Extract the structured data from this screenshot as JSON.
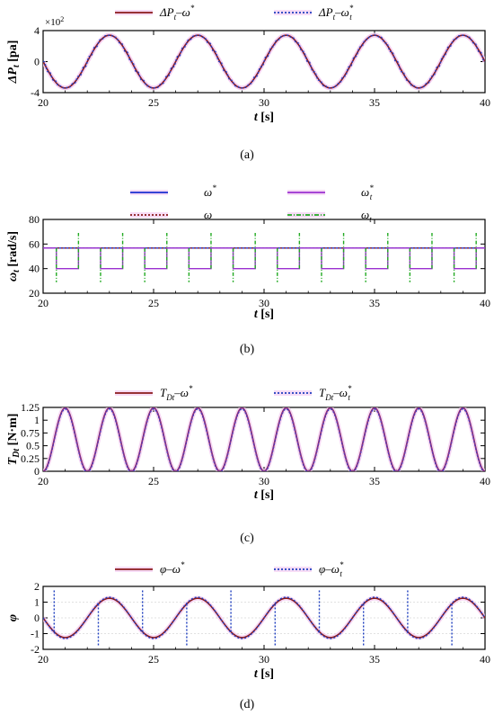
{
  "chart_data": [
    {
      "id": "a",
      "type": "line",
      "caption": "(a)",
      "ylabel_main": "ΔP",
      "ylabel_sub": "t",
      "ylabel_unit": "[pa]",
      "xlabel_main": "t",
      "xlabel_unit": "[s]",
      "sci_multiplier": "×10",
      "sci_exponent": "2",
      "xlim": [
        20,
        40
      ],
      "ylim": [
        -4,
        4
      ],
      "xticks": [
        "20",
        "25",
        "30",
        "35",
        "40"
      ],
      "xtick_values": [
        20,
        25,
        30,
        35,
        40
      ],
      "yticks": [
        "4",
        "0",
        "-4"
      ],
      "ytick_values": [
        4,
        0,
        -4
      ],
      "grid": false,
      "legend": [
        {
          "main": "ΔP",
          "sub": "t",
          "dash": "–",
          "rhs": "ω",
          "rhs_sup": "*",
          "rhs_sub": "",
          "color": "#8b1a1a",
          "style": "solid"
        },
        {
          "main": "ΔP",
          "sub": "t",
          "dash": "–",
          "rhs": "ω",
          "rhs_sup": "*",
          "rhs_sub": "t",
          "color": "#1f3fbf",
          "style": "dotted"
        }
      ],
      "series": [
        {
          "amplitude": 3.4,
          "period": 4.0,
          "phase_start": 20.0,
          "color": "#8b1a1a",
          "style": "solid"
        },
        {
          "amplitude": 3.4,
          "period": 4.0,
          "phase_start": 20.0,
          "color": "#1f3fbf",
          "style": "dotted"
        }
      ],
      "note": "ΔP_t ≈ -3.4·sin(2π(t-20)/4)·10^2 with slight spikes on dotted series"
    },
    {
      "id": "b",
      "type": "line",
      "caption": "(b)",
      "ylabel_main": "ω",
      "ylabel_sub": "t",
      "ylabel_unit": "[rad/s]",
      "xlabel_main": "t",
      "xlabel_unit": "[s]",
      "xlim": [
        20,
        40
      ],
      "ylim": [
        20,
        80
      ],
      "xticks": [
        "20",
        "25",
        "30",
        "35",
        "40"
      ],
      "xtick_values": [
        20,
        25,
        30,
        35,
        40
      ],
      "yticks": [
        "80",
        "60",
        "40",
        "20"
      ],
      "ytick_values": [
        80,
        60,
        40,
        20
      ],
      "grid": false,
      "legend": [
        {
          "main": "ω",
          "sup": "*",
          "sub": "",
          "color": "#1a2fd0",
          "style": "solid"
        },
        {
          "main": "ω",
          "sup": "*",
          "sub": "t",
          "color": "#9b30d0",
          "style": "solid"
        },
        {
          "main": "ω",
          "sup": "",
          "sub": "",
          "color": "#8b1a1a",
          "style": "dotted"
        },
        {
          "main": "ω",
          "sup": "",
          "sub": "t",
          "color": "#22aa22",
          "style": "dashdot"
        }
      ],
      "omega_ref": 56.7,
      "omega_low": 40.0,
      "spike_high": 69.0,
      "spike_low": 29.0,
      "steps": [
        [
          20.6,
          21.6
        ],
        [
          22.6,
          23.6
        ],
        [
          24.6,
          25.6
        ],
        [
          26.6,
          27.6
        ],
        [
          28.6,
          29.6
        ],
        [
          30.6,
          31.6
        ],
        [
          32.6,
          33.6
        ],
        [
          34.6,
          35.6
        ],
        [
          36.6,
          37.6
        ],
        [
          38.6,
          39.6
        ]
      ]
    },
    {
      "id": "c",
      "type": "line",
      "caption": "(c)",
      "ylabel_main": "T",
      "ylabel_sub": "Dt",
      "ylabel_unit": "[N·m]",
      "xlabel_main": "t",
      "xlabel_unit": "[s]",
      "xlim": [
        20,
        40
      ],
      "ylim": [
        0,
        1.25
      ],
      "xticks": [
        "20",
        "25",
        "30",
        "35",
        "40"
      ],
      "xtick_values": [
        20,
        25,
        30,
        35,
        40
      ],
      "yticks": [
        "1.25",
        "1",
        "0.75",
        "0.5",
        "0.25",
        "0"
      ],
      "ytick_values": [
        1.25,
        1,
        0.75,
        0.5,
        0.25,
        0
      ],
      "grid": false,
      "legend": [
        {
          "main": "T",
          "sub": "Dt",
          "dash": "–",
          "rhs": "ω",
          "rhs_sup": "*",
          "rhs_sub": "",
          "color": "#8b1a1a",
          "style": "solid"
        },
        {
          "main": "T",
          "sub": "Dt",
          "dash": "–",
          "rhs": "ω",
          "rhs_sup": "*",
          "rhs_sub": "t",
          "color": "#1f3fbf",
          "style": "dotted"
        }
      ],
      "series": [
        {
          "mean": 0.62,
          "amplitude": 0.62,
          "period": 2.0,
          "color": "#8b1a1a",
          "style": "solid"
        },
        {
          "mean": 0.62,
          "amplitude": 0.62,
          "period": 2.0,
          "color": "#1f3fbf",
          "style": "dotted"
        },
        {
          "mean": 0.62,
          "amplitude": 0.62,
          "period": 2.0,
          "color": "#7b2fa8",
          "style": "solid"
        }
      ]
    },
    {
      "id": "d",
      "type": "line",
      "caption": "(d)",
      "ylabel_main": "φ",
      "ylabel_sub": "",
      "ylabel_unit": "",
      "xlabel_main": "t",
      "xlabel_unit": "[s]",
      "xlim": [
        20,
        40
      ],
      "ylim": [
        -2,
        2
      ],
      "xticks": [
        "20",
        "25",
        "30",
        "35",
        "40"
      ],
      "xtick_values": [
        20,
        25,
        30,
        35,
        40
      ],
      "yticks": [
        "2",
        "1",
        "0",
        "-1",
        "-2"
      ],
      "ytick_values": [
        2,
        1,
        0,
        -1,
        -2
      ],
      "grid": true,
      "legend": [
        {
          "main": "φ",
          "sub": "",
          "dash": "–",
          "rhs": "ω",
          "rhs_sup": "*",
          "rhs_sub": "",
          "color": "#8b1a1a",
          "style": "solid"
        },
        {
          "main": "φ",
          "sub": "",
          "dash": "–",
          "rhs": "ω",
          "rhs_sup": "*",
          "rhs_sub": "t",
          "color": "#1f3fbf",
          "style": "dotted"
        }
      ],
      "series": [
        {
          "amplitude": 1.25,
          "period": 4.0,
          "color": "#8b1a1a",
          "style": "solid"
        },
        {
          "amplitude": 1.25,
          "period": 4.0,
          "color": "#1f3fbf",
          "style": "dotted"
        }
      ]
    }
  ]
}
